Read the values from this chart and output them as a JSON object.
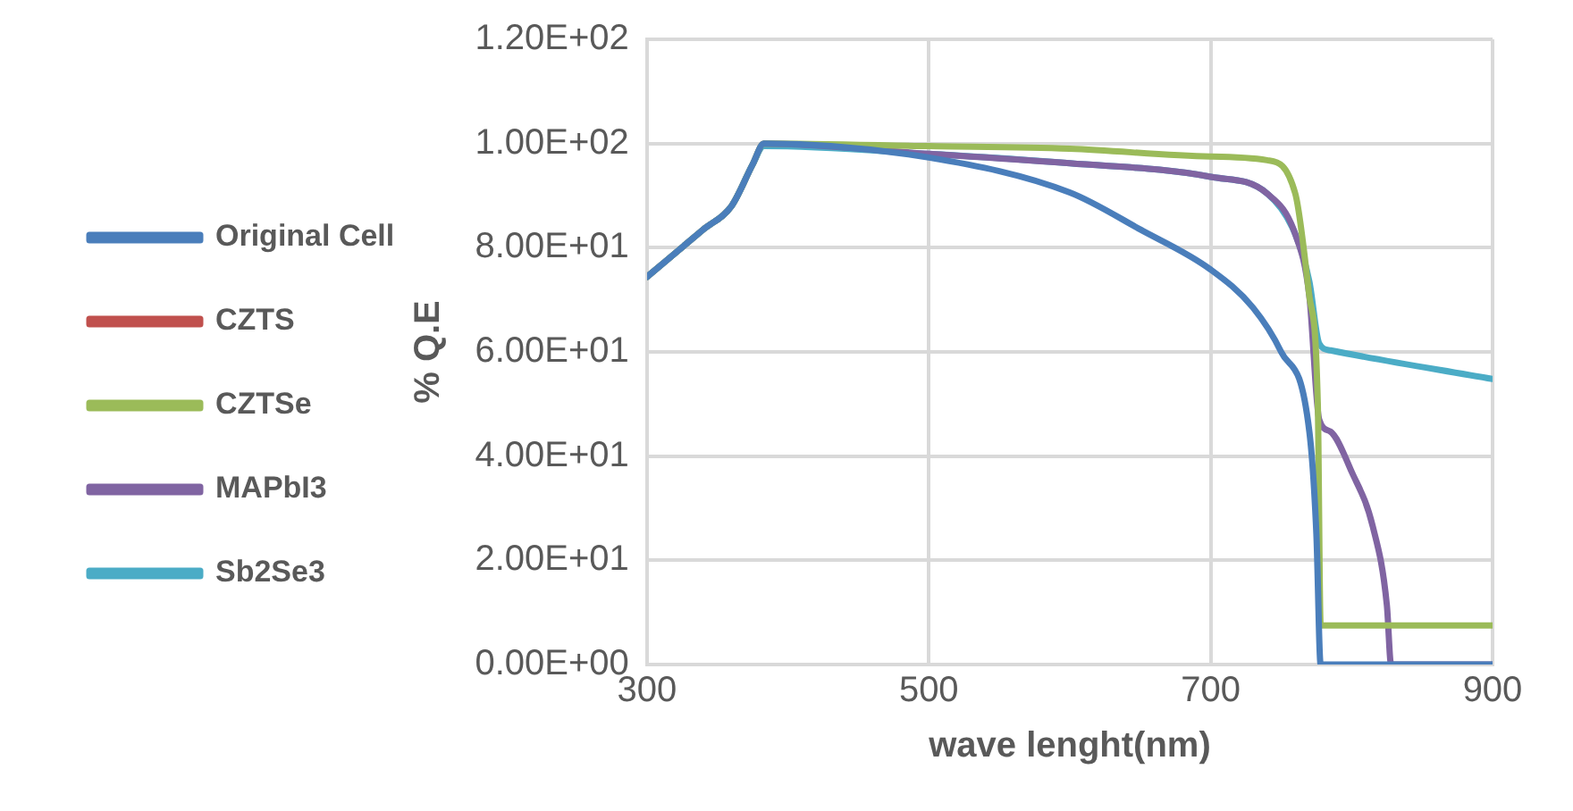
{
  "chart_data": {
    "type": "line",
    "xlabel": "wave lenght(nm)",
    "ylabel": "% Q.E",
    "xlim": [
      300,
      900
    ],
    "xticks": [
      300,
      500,
      700,
      900
    ],
    "ylim": [
      0,
      120
    ],
    "yticks": [
      {
        "value": 0,
        "label": "0.00E+00"
      },
      {
        "value": 20,
        "label": "2.00E+01"
      },
      {
        "value": 40,
        "label": "4.00E+01"
      },
      {
        "value": 60,
        "label": "6.00E+01"
      },
      {
        "value": 80,
        "label": "8.00E+01"
      },
      {
        "value": 100,
        "label": "1.00E+02"
      },
      {
        "value": 120,
        "label": "1.20E+02"
      }
    ],
    "grid": true,
    "legend": "left",
    "marker": "none",
    "line_style": "solid",
    "series": [
      {
        "name": "Original Cell",
        "color": "#4a7ebb",
        "x": [
          300,
          340,
          360,
          375,
          383,
          500,
          600,
          650,
          700,
          730,
          750,
          770,
          775,
          778,
          900
        ],
        "values": [
          74.4,
          83.5,
          88,
          96,
          100,
          97.3,
          90.6,
          83.5,
          75.8,
          68.5,
          60,
          44.7,
          25,
          0,
          0
        ]
      },
      {
        "name": "CZTS",
        "color": "#c0504d"
      },
      {
        "name": "CZTSe",
        "color": "#9bbb59",
        "x": [
          300,
          340,
          360,
          375,
          383,
          500,
          600,
          700,
          740,
          760,
          770,
          776,
          778,
          900
        ],
        "values": [
          74.4,
          83.5,
          88,
          96,
          100,
          99.5,
          99,
          97.5,
          96.8,
          90.4,
          70.7,
          50,
          7.5,
          7.5
        ]
      },
      {
        "name": "MAPbI3",
        "color": "#8064a2",
        "x": [
          300,
          340,
          360,
          375,
          383,
          500,
          600,
          700,
          740,
          760,
          770,
          777,
          785,
          800,
          815,
          825,
          828,
          900
        ],
        "values": [
          74.4,
          83.5,
          88,
          96,
          100,
          98,
          96.2,
          93.6,
          90.4,
          82.6,
          70.7,
          47,
          44.7,
          37,
          26.5,
          11.4,
          0,
          0
        ]
      },
      {
        "name": "Sb2Se3",
        "color": "#4bacc6",
        "x": [
          300,
          340,
          360,
          375,
          383,
          500,
          600,
          700,
          740,
          760,
          770,
          777,
          785,
          900
        ],
        "values": [
          74.4,
          83.5,
          88,
          96,
          99.5,
          98,
          96.2,
          93.6,
          90.4,
          82.6,
          73.5,
          61.6,
          60.3,
          54.8
        ]
      }
    ]
  }
}
